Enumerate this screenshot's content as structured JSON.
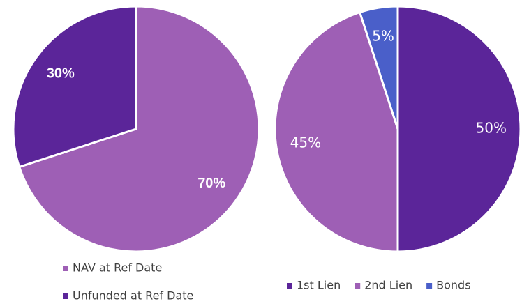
{
  "chart_data": [
    {
      "type": "pie",
      "categories": [
        "NAV at Ref Date",
        "Unfunded at Ref Date"
      ],
      "values": [
        70,
        30
      ],
      "value_labels": [
        "70%",
        "30%"
      ],
      "colors": [
        "#9e5fb5",
        "#5b2599"
      ]
    },
    {
      "type": "pie",
      "categories": [
        "1st Lien",
        "2nd Lien",
        "Bonds"
      ],
      "values": [
        50,
        45,
        5
      ],
      "value_labels": [
        "50%",
        "45%",
        "5%"
      ],
      "colors": [
        "#5b2599",
        "#9e5fb5",
        "#4a5fc9"
      ]
    }
  ]
}
